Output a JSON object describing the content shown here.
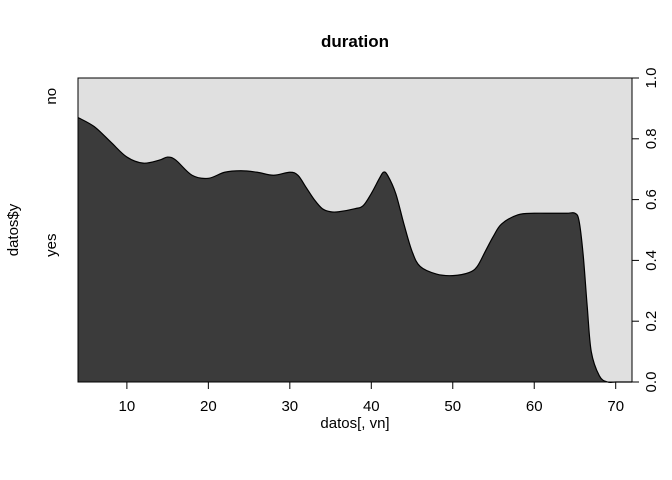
{
  "chart_data": {
    "type": "area",
    "title": "duration",
    "xlabel": "datos[, vn]",
    "ylabel": "datos$y",
    "xlim": [
      4,
      72
    ],
    "ylim": [
      0,
      1
    ],
    "x_ticks": [
      "10",
      "20",
      "30",
      "40",
      "50",
      "60",
      "70"
    ],
    "y_right_ticks": [
      "0.0",
      "0.2",
      "0.4",
      "0.6",
      "0.8",
      "1.0"
    ],
    "y_left_categories": [
      "no",
      "yes"
    ],
    "series": [
      {
        "name": "yes",
        "color": "#3b3b3b",
        "x": [
          4,
          6,
          8,
          10,
          12,
          14,
          15,
          16,
          18,
          20,
          22,
          24,
          26,
          28,
          30,
          31,
          32,
          33,
          34,
          35,
          36,
          38,
          39,
          40,
          41,
          41.5,
          42,
          43,
          44,
          45,
          46,
          48,
          50,
          52,
          53,
          54,
          55,
          56,
          58,
          60,
          62,
          64,
          65,
          65.5,
          66,
          66.5,
          67,
          68,
          69,
          70,
          72
        ],
        "values": [
          0.87,
          0.84,
          0.79,
          0.74,
          0.72,
          0.73,
          0.74,
          0.73,
          0.68,
          0.67,
          0.69,
          0.695,
          0.69,
          0.68,
          0.69,
          0.68,
          0.64,
          0.6,
          0.57,
          0.56,
          0.56,
          0.57,
          0.58,
          0.62,
          0.67,
          0.69,
          0.68,
          0.62,
          0.52,
          0.43,
          0.38,
          0.355,
          0.35,
          0.36,
          0.38,
          0.43,
          0.48,
          0.52,
          0.55,
          0.555,
          0.555,
          0.555,
          0.555,
          0.53,
          0.42,
          0.25,
          0.1,
          0.02,
          0.0,
          0.0,
          0.0
        ]
      },
      {
        "name": "no",
        "color": "#e0e0e0"
      }
    ]
  }
}
